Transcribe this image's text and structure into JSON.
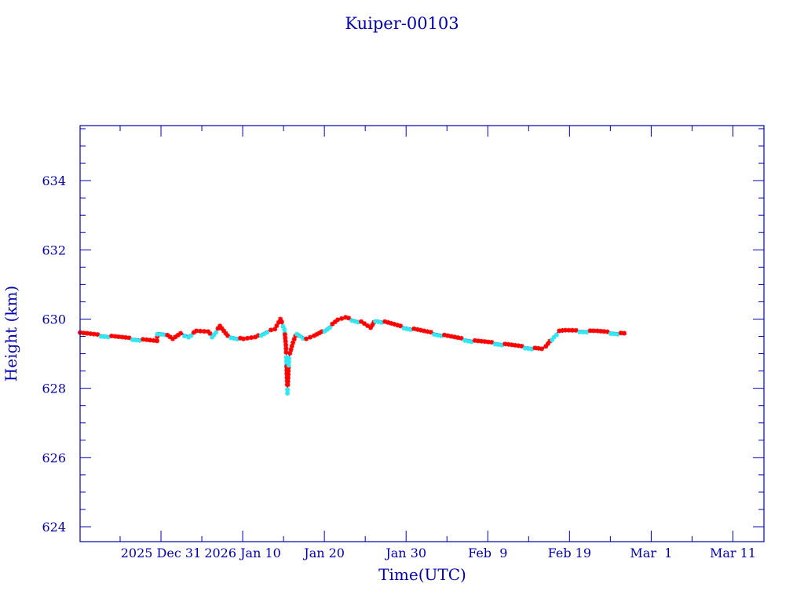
{
  "chart_data": {
    "type": "line",
    "title": "Kuiper-00103",
    "xlabel": "Time(UTC)",
    "ylabel": "Height (km)",
    "x_units": "days since 2025 Dec 31 00:00 UTC",
    "xlim": [
      -9.9,
      73.8
    ],
    "ylim": [
      623.57,
      635.59
    ],
    "yticks": [
      624,
      626,
      628,
      630,
      632,
      634
    ],
    "ytick_labels": [
      "624",
      "626",
      "628",
      "630",
      "632",
      "634"
    ],
    "xticks": [
      0,
      10,
      20,
      30,
      40,
      50,
      60,
      70
    ],
    "xtick_labels": [
      "2025 Dec 31",
      "2026 Jan 10",
      "Jan 20",
      "Jan 30",
      "Feb  9",
      "Feb 19",
      "Mar  1",
      "Mar 11"
    ],
    "grid": false,
    "colors": {
      "axis": "#0000b0",
      "line": "#0000a0",
      "marker_primary": "#ff0000",
      "marker_secondary": "#33e6f0"
    },
    "series": [
      {
        "name": "Height",
        "x": [
          -9.9,
          -0.48,
          -0.45,
          0.48,
          1.44,
          2.4,
          3.37,
          4.33,
          5.77,
          6.25,
          7.21,
          8.17,
          10.1,
          11.54,
          12.98,
          13.94,
          14.62,
          15.1,
          15.29,
          15.48,
          15.67,
          16.15,
          16.63,
          17.79,
          18.75,
          19.71,
          20.67,
          21.63,
          22.6,
          24.5,
          25.67,
          26.25,
          27.4,
          29.33,
          32.2,
          35.1,
          38.0,
          40.9,
          43.75,
          46.6,
          47.1,
          48.1,
          48.75,
          49.5,
          53.4,
          56.7
        ],
        "y": [
          629.61,
          629.37,
          629.61,
          629.59,
          629.43,
          629.59,
          629.52,
          629.66,
          629.64,
          629.52,
          629.8,
          629.52,
          629.43,
          629.48,
          629.66,
          629.71,
          630.0,
          629.75,
          629.25,
          627.9,
          628.91,
          629.32,
          629.61,
          629.43,
          629.52,
          629.64,
          629.8,
          629.98,
          630.05,
          629.93,
          629.75,
          629.98,
          629.93,
          629.8,
          629.66,
          629.52,
          629.39,
          629.32,
          629.23,
          629.14,
          629.21,
          629.52,
          629.66,
          629.68,
          629.66,
          629.59
        ]
      }
    ]
  }
}
